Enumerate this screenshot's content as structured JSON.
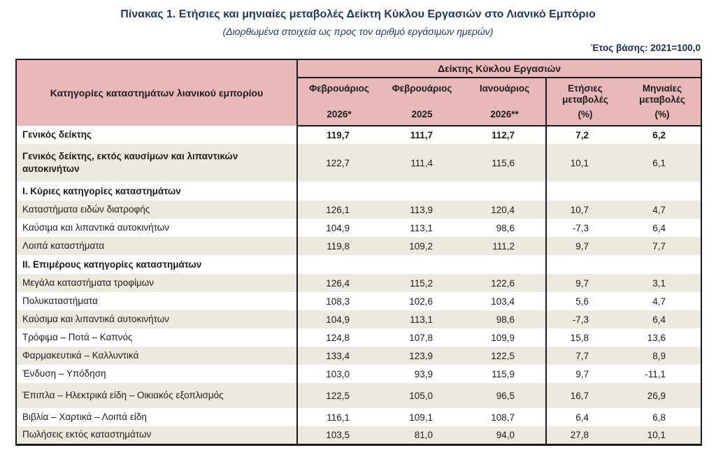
{
  "colors": {
    "header_pink": "#e9b8b9",
    "row_beige": "#eceade",
    "title_navy": "#1f3864",
    "border_dark": "#1a1a1a"
  },
  "page": {
    "title": "Πίνακας 1. Ετήσιες και μηνιαίες μεταβολές Δείκτη Κύκλου Εργασιών στο Λιανικό Εμπόριο",
    "subtitle": "(Διορθωμένα στοιχεία ως προς τον αριθμό εργάσιμων ημερών)",
    "base_year_note": "Έτος βάσης: 2021=100,0"
  },
  "table": {
    "category_header": "Κατηγορίες καταστημάτων λιανικού εμπορίου",
    "group_header": "Δείκτης Κύκλου Εργασιών",
    "columns": [
      {
        "label": "Φεβρουάριος",
        "sub": "2026*"
      },
      {
        "label": "Φεβρουάριος",
        "sub": "2025"
      },
      {
        "label": "Ιανουάριος",
        "sub": "2026**"
      },
      {
        "label": "Ετήσιες μεταβολές",
        "sub": "(%)"
      },
      {
        "label": "Μηνιαίες μεταβολές",
        "sub": "(%)"
      }
    ],
    "rows": [
      {
        "label": "Γενικός δείκτης",
        "type": "total",
        "values": [
          "119,7",
          "111,7",
          "112,7",
          "7,2",
          "6,2"
        ]
      },
      {
        "label": "Γενικός δείκτης, εκτός καυσίμων και λιπαντικών αυτοκινήτων",
        "type": "total2",
        "values": [
          "122,7",
          "111,4",
          "115,6",
          "10,1",
          "6,1"
        ]
      },
      {
        "label": "Ι. Κύριες κατηγορίες καταστημάτων",
        "type": "section",
        "values": [
          "",
          "",
          "",
          "",
          ""
        ]
      },
      {
        "label": "Καταστήματα ειδών διατροφής",
        "type": "item",
        "values": [
          "126,1",
          "113,9",
          "120,4",
          "10,7",
          "4,7"
        ]
      },
      {
        "label": "Καύσιμα και λιπαντικά αυτοκινήτων",
        "type": "item",
        "values": [
          "104,9",
          "113,1",
          "98,6",
          "-7,3",
          "6,4"
        ]
      },
      {
        "label": "Λοιπά καταστήματα",
        "type": "item",
        "values": [
          "119,8",
          "109,2",
          "111,2",
          "9,7",
          "7,7"
        ]
      },
      {
        "label": "ΙΙ. Επιμέρους κατηγορίες καταστημάτων",
        "type": "section",
        "values": [
          "",
          "",
          "",
          "",
          ""
        ]
      },
      {
        "label": "Μεγάλα καταστήματα τροφίμων",
        "type": "item",
        "values": [
          "126,4",
          "115,2",
          "122,6",
          "9,7",
          "3,1"
        ]
      },
      {
        "label": "Πολυκαταστήματα",
        "type": "item",
        "values": [
          "108,3",
          "102,6",
          "103,4",
          "5,6",
          "4,7"
        ]
      },
      {
        "label": "Καύσιμα και λιπαντικά αυτοκινήτων",
        "type": "item",
        "values": [
          "104,9",
          "113,1",
          "98,6",
          "-7,3",
          "6,4"
        ]
      },
      {
        "label": "Τρόφιμα – Ποτά – Καπνός",
        "type": "item",
        "values": [
          "124,8",
          "107,8",
          "109,9",
          "15,8",
          "13,6"
        ]
      },
      {
        "label": "Φαρμακευτικά – Καλλυντικά",
        "type": "item",
        "values": [
          "133,4",
          "123,9",
          "122,5",
          "7,7",
          "8,9"
        ]
      },
      {
        "label": "Ένδυση – Υπόδηση",
        "type": "item",
        "values": [
          "103,0",
          "93,9",
          "115,9",
          "9,7",
          "-11,1"
        ]
      },
      {
        "label": "Έπιπλα – Ηλεκτρικά είδη – Οικιακός εξοπλισμός",
        "type": "item",
        "values": [
          "122,5",
          "105,0",
          "96,5",
          "16,7",
          "26,9"
        ]
      },
      {
        "label": "Βιβλία – Χαρτικά – Λοιπά είδη",
        "type": "item",
        "values": [
          "116,1",
          "109,1",
          "108,7",
          "6,4",
          "6,8"
        ]
      },
      {
        "label": "Πωλήσεις εκτός καταστημάτων",
        "type": "item",
        "values": [
          "103,5",
          "81,0",
          "94,0",
          "27,8",
          "10,1"
        ]
      }
    ]
  }
}
